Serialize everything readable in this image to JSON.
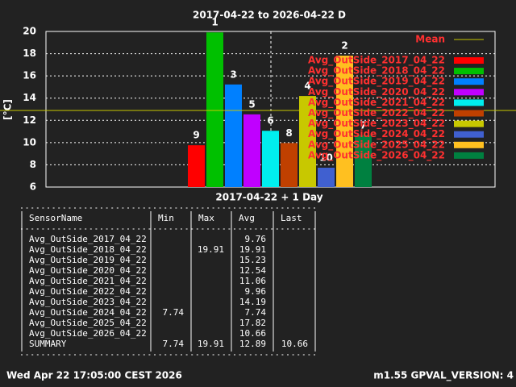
{
  "chart_data": {
    "type": "bar",
    "title": "2017-04-22 to 2026-04-22 D",
    "ylabel": "[°C]",
    "ylim": [
      6,
      20
    ],
    "yticks": [
      6,
      8,
      10,
      12,
      14,
      16,
      18,
      20
    ],
    "grid": true,
    "mean": {
      "name": "Mean",
      "value": 12.89,
      "color": "#c8c800"
    },
    "series": [
      {
        "name": "Avg_OutSide_2017_04_22",
        "color": "#ff0000",
        "values": [
          9.76
        ],
        "rank": 9
      },
      {
        "name": "Avg_OutSide_2018_04_22",
        "color": "#00c000",
        "values": [
          19.91
        ],
        "rank": 1
      },
      {
        "name": "Avg_OutSide_2019_04_22",
        "color": "#0080ff",
        "values": [
          15.23
        ],
        "rank": 3
      },
      {
        "name": "Avg_OutSide_2020_04_22",
        "color": "#c000ff",
        "values": [
          12.54
        ],
        "rank": 5
      },
      {
        "name": "Avg_OutSide_2021_04_22",
        "color": "#00eeee",
        "values": [
          11.06
        ],
        "rank": 6
      },
      {
        "name": "Avg_OutSide_2022_04_22",
        "color": "#c04000",
        "values": [
          9.96
        ],
        "rank": 8
      },
      {
        "name": "Avg_OutSide_2023_04_22",
        "color": "#c8c800",
        "values": [
          14.19
        ],
        "rank": 4
      },
      {
        "name": "Avg_OutSide_2024_04_22",
        "color": "#4060d0",
        "values": [
          7.74
        ],
        "rank": 10
      },
      {
        "name": "Avg_OutSide_2025_04_22",
        "color": "#ffc020",
        "values": [
          17.82
        ],
        "rank": 2
      },
      {
        "name": "Avg_OutSide_2026_04_22",
        "color": "#008040",
        "values": [
          10.66
        ],
        "rank": 7
      }
    ]
  },
  "table": {
    "title": "2017-04-22 + 1 Day",
    "columns": [
      "SensorName",
      "Min",
      "Max",
      "Avg",
      "Last"
    ],
    "rows": [
      [
        "Avg_OutSide_2017_04_22",
        null,
        null,
        "9.76",
        null
      ],
      [
        "Avg_OutSide_2018_04_22",
        null,
        "19.91",
        "19.91",
        null
      ],
      [
        "Avg_OutSide_2019_04_22",
        null,
        null,
        "15.23",
        null
      ],
      [
        "Avg_OutSide_2020_04_22",
        null,
        null,
        "12.54",
        null
      ],
      [
        "Avg_OutSide_2021_04_22",
        null,
        null,
        "11.06",
        null
      ],
      [
        "Avg_OutSide_2022_04_22",
        null,
        null,
        "9.96",
        null
      ],
      [
        "Avg_OutSide_2023_04_22",
        null,
        null,
        "14.19",
        null
      ],
      [
        "Avg_OutSide_2024_04_22",
        "7.74",
        null,
        "7.74",
        null
      ],
      [
        "Avg_OutSide_2025_04_22",
        null,
        null,
        "17.82",
        null
      ],
      [
        "Avg_OutSide_2026_04_22",
        null,
        null,
        "10.66",
        null
      ],
      [
        "SUMMARY",
        "7.74",
        "19.91",
        "12.89",
        "10.66"
      ]
    ]
  },
  "footer": {
    "left": "Wed Apr 22 17:05:00 CEST 2026",
    "right": "m1.55 GPVAL_VERSION: 4"
  }
}
